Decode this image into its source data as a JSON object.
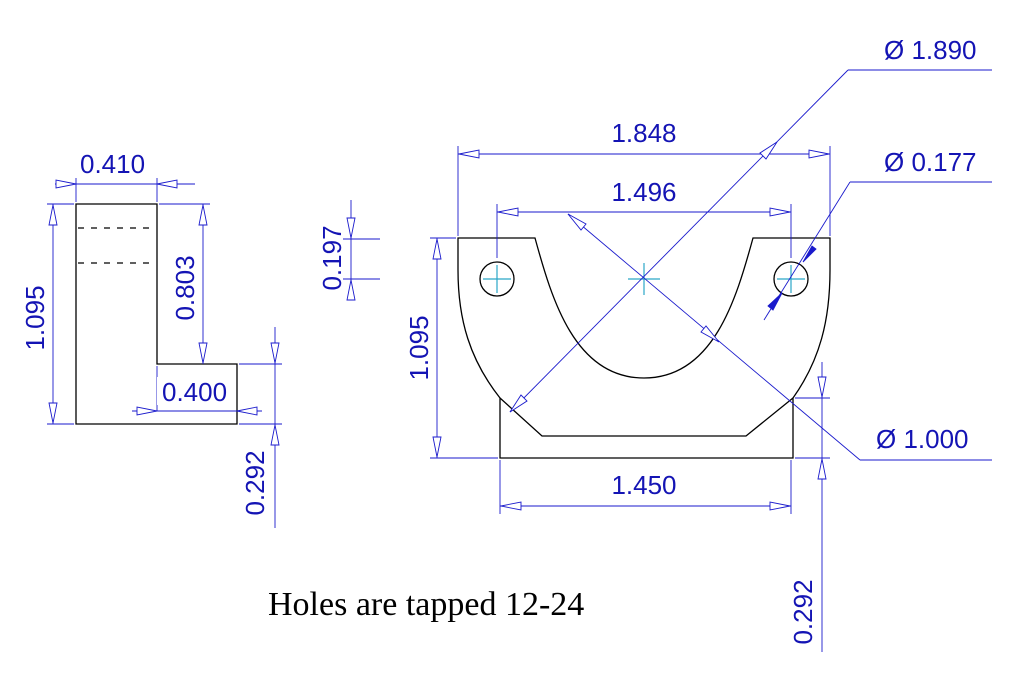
{
  "colors": {
    "dimension": "#1a1acc",
    "dimension_text": "#1414b4",
    "center_mark": "#2aa6c8",
    "part_outline": "#000000"
  },
  "dimensions": {
    "side_width_top": "0.410",
    "side_height_total": "1.095",
    "side_upright_height": "0.803",
    "side_foot_length": "0.400",
    "side_foot_thickness": "0.292",
    "hole_spacing_tag": "0.197",
    "front_overall_width": "1.848",
    "front_hole_spacing": "1.496",
    "front_height": "1.095",
    "front_base_width": "1.450",
    "front_base_thickness": "0.292",
    "outer_diameter": "Ø 1.890",
    "hole_diameter": "Ø 0.177",
    "inner_diameter": "Ø 1.000"
  },
  "note": "Holes are tapped 12-24"
}
